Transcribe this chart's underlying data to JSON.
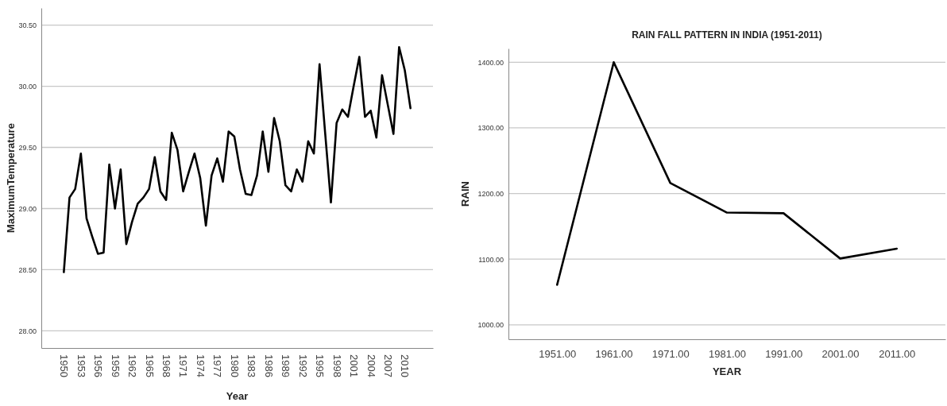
{
  "chart_data": [
    {
      "type": "line",
      "xlabel": "Year",
      "ylabel": "MaximumTemperature",
      "grid": "y",
      "categories": [
        "1950",
        null,
        null,
        "1953",
        null,
        null,
        "1956",
        null,
        null,
        "1959",
        null,
        null,
        "1962",
        null,
        null,
        "1965",
        null,
        null,
        "1968",
        null,
        null,
        "1971",
        null,
        null,
        "1974",
        null,
        null,
        "1977",
        null,
        null,
        "1980",
        null,
        null,
        "1983",
        null,
        null,
        "1986",
        null,
        null,
        "1989",
        null,
        null,
        "1992",
        null,
        null,
        "1995",
        null,
        null,
        "1998",
        null,
        null,
        "2001",
        null,
        null,
        "2004",
        null,
        null,
        "2007",
        null,
        null,
        "2010",
        null
      ],
      "series": [
        {
          "color": "#000000",
          "values": [
            28.48,
            29.09,
            29.16,
            29.45,
            28.92,
            28.77,
            28.63,
            28.64,
            29.36,
            29.0,
            29.32,
            28.71,
            28.89,
            29.04,
            29.09,
            29.16,
            29.42,
            29.14,
            29.07,
            29.62,
            29.48,
            29.14,
            29.3,
            29.45,
            29.25,
            28.86,
            29.27,
            29.41,
            29.22,
            29.63,
            29.59,
            29.32,
            29.12,
            29.11,
            29.27,
            29.63,
            29.3,
            29.74,
            29.55,
            29.19,
            29.14,
            29.32,
            29.22,
            29.55,
            29.45,
            30.18,
            29.61,
            29.05,
            29.7,
            29.81,
            29.75,
            30.0,
            30.24,
            29.75,
            29.8,
            29.58,
            30.09,
            29.85,
            29.61,
            30.32,
            30.13,
            29.82
          ]
        }
      ],
      "ylim": [
        27.86,
        30.64
      ],
      "yticks": [
        {
          "value": 28,
          "label": "28.00"
        },
        {
          "value": 28.5,
          "label": "28.50"
        },
        {
          "value": 29,
          "label": "29.00"
        },
        {
          "value": 29.5,
          "label": "29.50"
        },
        {
          "value": 30,
          "label": "30.00"
        },
        {
          "value": 30.5,
          "label": "30.50"
        }
      ]
    },
    {
      "type": "line",
      "title": "RAIN FALL PATTERN IN INDIA (1951-2011)",
      "xlabel": "YEAR",
      "ylabel": "RAIN",
      "grid": "y",
      "categories": [
        "1951.00",
        "1961.00",
        "1971.00",
        "1981.00",
        "1991.00",
        "2001.00",
        "2011.00"
      ],
      "series": [
        {
          "color": "#000000",
          "values": [
            1061,
            1400,
            1216,
            1171,
            1170,
            1101,
            1116
          ]
        }
      ],
      "ylim": [
        978,
        1421
      ],
      "yticks": [
        {
          "value": 1000,
          "label": "1000.00"
        },
        {
          "value": 1100,
          "label": "1100.00"
        },
        {
          "value": 1200,
          "label": "1200.00"
        },
        {
          "value": 1300,
          "label": "1300.00"
        },
        {
          "value": 1400,
          "label": "1400.00"
        }
      ]
    }
  ]
}
